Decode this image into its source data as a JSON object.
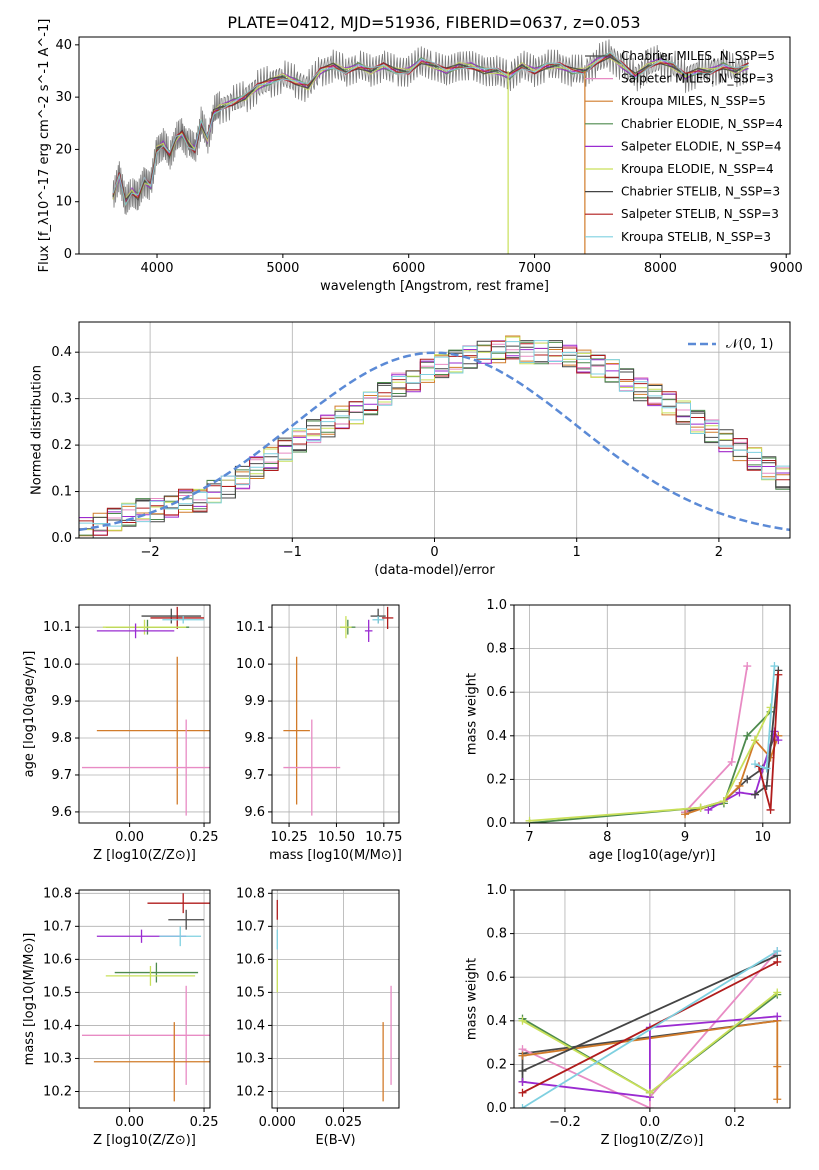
{
  "title": "PLATE=0412, MJD=51936, FIBERID=0637, z=0.053",
  "palette": [
    "#4a4a4a",
    "#e88bc4",
    "#d17b2a",
    "#4d8a4d",
    "#9a2bd1",
    "#c9e05a",
    "#444444",
    "#b01c1c",
    "#7fd0e0"
  ],
  "chart_data": [
    {
      "id": "spectrum",
      "type": "line",
      "xlabel": "wavelength [Angstrom, rest frame]",
      "ylabel": "Flux [f_λ10^-17 erg cm^-2 s^-1 A^-1]",
      "xlim": [
        3380,
        9030
      ],
      "ylim": [
        0,
        41.5
      ],
      "xticks": [
        4000,
        5000,
        6000,
        7000,
        8000,
        9000
      ],
      "yticks": [
        0,
        10,
        20,
        30,
        40
      ],
      "grid": false,
      "legend_position": "right",
      "data_curve": {
        "x": [
          3650,
          3700,
          3750,
          3800,
          3850,
          3900,
          3950,
          4000,
          4050,
          4100,
          4150,
          4200,
          4250,
          4300,
          4350,
          4400,
          4450,
          4500,
          4600,
          4700,
          4800,
          4900,
          5000,
          5100,
          5200,
          5300,
          5400,
          5500,
          5600,
          5700,
          5800,
          5900,
          6000,
          6100,
          6200,
          6300,
          6400,
          6500,
          6600,
          6700,
          6800,
          6900,
          7000,
          7100,
          7200,
          7300,
          7400,
          7500,
          7600,
          7700,
          7800,
          7900,
          8000,
          8100,
          8200,
          8300,
          8400,
          8500,
          8600,
          8700
        ],
        "y": [
          11,
          15,
          10,
          12,
          11,
          14,
          13,
          20,
          21,
          19,
          22,
          23,
          21,
          20,
          25,
          22,
          27,
          28,
          29,
          30,
          32,
          33,
          34,
          33,
          32,
          35,
          36,
          35,
          36,
          35,
          36,
          35,
          35,
          37,
          36,
          35,
          36,
          36,
          35,
          35,
          34,
          36,
          35,
          36,
          36,
          35,
          35,
          37,
          38,
          36,
          34,
          36,
          37,
          36,
          34,
          35,
          35,
          36,
          35,
          36
        ]
      },
      "series": [
        {
          "name": "Chabrier MILES, N_SSP=5"
        },
        {
          "name": "Salpeter MILES, N_SSP=3"
        },
        {
          "name": "Kroupa MILES, N_SSP=5"
        },
        {
          "name": "Chabrier ELODIE, N_SSP=4"
        },
        {
          "name": "Salpeter ELODIE, N_SSP=4"
        },
        {
          "name": "Kroupa ELODIE, N_SSP=4"
        },
        {
          "name": "Chabrier STELIB, N_SSP=3"
        },
        {
          "name": "Salpeter STELIB, N_SSP=3"
        },
        {
          "name": "Kroupa STELIB, N_SSP=3"
        }
      ]
    },
    {
      "id": "residuals",
      "type": "bar",
      "xlabel": "(data-model)/error",
      "ylabel": "Normed distribution",
      "xlim": [
        -2.5,
        2.5
      ],
      "ylim": [
        0,
        0.465
      ],
      "xticks": [
        -2,
        -1,
        0,
        1,
        2
      ],
      "yticks": [
        0.0,
        0.1,
        0.2,
        0.3,
        0.4
      ],
      "grid": true,
      "legend_position": "top-right",
      "reference_curve": {
        "name": "𝒩(0, 1)",
        "mean": 0,
        "sigma": 1
      },
      "histogram": {
        "bin_width": 0.1,
        "x_start": -2.5,
        "values": [
          0.02,
          0.03,
          0.04,
          0.05,
          0.06,
          0.06,
          0.07,
          0.08,
          0.08,
          0.1,
          0.11,
          0.13,
          0.15,
          0.17,
          0.19,
          0.21,
          0.23,
          0.24,
          0.26,
          0.27,
          0.29,
          0.31,
          0.33,
          0.34,
          0.36,
          0.37,
          0.38,
          0.39,
          0.4,
          0.4,
          0.41,
          0.4,
          0.4,
          0.4,
          0.39,
          0.38,
          0.37,
          0.36,
          0.34,
          0.32,
          0.31,
          0.29,
          0.27,
          0.25,
          0.23,
          0.21,
          0.19,
          0.17,
          0.15,
          0.13
        ]
      }
    },
    {
      "id": "age-vs-Z",
      "type": "scatter",
      "xlabel": "Z [log10(Z/Z⊙)]",
      "ylabel": "age  [log10(age/yr)]",
      "xlim": [
        -0.17,
        0.27
      ],
      "ylim": [
        9.57,
        10.16
      ],
      "xticks": [
        0.0,
        0.25
      ],
      "yticks": [
        9.6,
        9.7,
        9.8,
        9.9,
        10.0,
        10.1
      ],
      "grid": true,
      "points": [
        {
          "series": 0,
          "x": 0.14,
          "y": 10.13,
          "xerr": 0.1,
          "yerr": 0.02
        },
        {
          "series": 7,
          "x": 0.16,
          "y": 10.125,
          "xerr": 0.09,
          "yerr": 0.03
        },
        {
          "series": 8,
          "x": 0.18,
          "y": 10.12,
          "xerr": 0.07,
          "yerr": 0.01
        },
        {
          "series": 3,
          "x": 0.06,
          "y": 10.1,
          "xerr": 0.14,
          "yerr": 0.02
        },
        {
          "series": 5,
          "x": 0.05,
          "y": 10.1,
          "xerr": 0.14,
          "yerr": 0.02
        },
        {
          "series": 4,
          "x": 0.02,
          "y": 10.09,
          "xerr": 0.13,
          "yerr": 0.02
        },
        {
          "series": 2,
          "x": 0.16,
          "y": 9.82,
          "xerr": 0.27,
          "yerr": 0.2
        },
        {
          "series": 1,
          "x": 0.19,
          "y": 9.72,
          "xerr": 0.35,
          "yerr": 0.13
        }
      ]
    },
    {
      "id": "age-vs-mass",
      "type": "scatter",
      "xlabel": "mass [log10(M/M⊙)]",
      "ylabel": "",
      "xlim": [
        10.16,
        10.83
      ],
      "ylim": [
        9.57,
        10.16
      ],
      "xticks": [
        10.25,
        10.5,
        10.75
      ],
      "yticks": [
        9.6,
        9.7,
        9.8,
        9.9,
        10.0,
        10.1
      ],
      "grid": true,
      "points": [
        {
          "series": 0,
          "x": 10.72,
          "y": 10.13,
          "xerr": 0.04,
          "yerr": 0.02
        },
        {
          "series": 7,
          "x": 10.77,
          "y": 10.125,
          "xerr": 0.03,
          "yerr": 0.03
        },
        {
          "series": 8,
          "x": 10.72,
          "y": 10.12,
          "xerr": 0.03,
          "yerr": 0.01
        },
        {
          "series": 3,
          "x": 10.56,
          "y": 10.1,
          "xerr": 0.04,
          "yerr": 0.02
        },
        {
          "series": 5,
          "x": 10.55,
          "y": 10.1,
          "xerr": 0.03,
          "yerr": 0.03
        },
        {
          "series": 4,
          "x": 10.67,
          "y": 10.09,
          "xerr": 0.02,
          "yerr": 0.03
        },
        {
          "series": 2,
          "x": 10.29,
          "y": 9.82,
          "xerr": 0.07,
          "yerr": 0.2
        },
        {
          "series": 1,
          "x": 10.37,
          "y": 9.72,
          "xerr": 0.15,
          "yerr": 0.13
        }
      ]
    },
    {
      "id": "massweight-vs-age",
      "type": "line",
      "xlabel": "age  [log10(age/yr)]",
      "ylabel": "mass weight",
      "xlim": [
        6.8,
        10.35
      ],
      "ylim": [
        0,
        1.0
      ],
      "xticks": [
        7,
        8,
        9,
        10
      ],
      "yticks": [
        0.0,
        0.2,
        0.4,
        0.6,
        0.8,
        1.0
      ],
      "grid": true,
      "series": [
        {
          "x": [
            9.0,
            9.5,
            9.8,
            10.0,
            10.15
          ],
          "y": [
            0.05,
            0.1,
            0.2,
            0.25,
            0.4
          ]
        },
        {
          "x": [
            9.0,
            9.6,
            9.8
          ],
          "y": [
            0.05,
            0.28,
            0.72
          ]
        },
        {
          "x": [
            9.0,
            9.5,
            9.7,
            9.9,
            10.1,
            10.2
          ],
          "y": [
            0.04,
            0.1,
            0.17,
            0.38,
            0.3,
            0.4
          ]
        },
        {
          "x": [
            7.0,
            9.2,
            9.5,
            9.8,
            10.1
          ],
          "y": [
            0.0,
            0.07,
            0.09,
            0.4,
            0.51
          ]
        },
        {
          "x": [
            9.3,
            9.7,
            9.9,
            10.15,
            10.2
          ],
          "y": [
            0.06,
            0.14,
            0.13,
            0.42,
            0.38
          ]
        },
        {
          "x": [
            7.0,
            9.2,
            9.5,
            9.9,
            10.1
          ],
          "y": [
            0.01,
            0.07,
            0.1,
            0.38,
            0.53
          ]
        },
        {
          "x": [
            9.9,
            10.05,
            10.2
          ],
          "y": [
            0.13,
            0.17,
            0.7
          ]
        },
        {
          "x": [
            9.95,
            10.1,
            10.2
          ],
          "y": [
            0.26,
            0.06,
            0.68
          ]
        },
        {
          "x": [
            9.9,
            10.05,
            10.15
          ],
          "y": [
            0.27,
            0.25,
            0.72
          ]
        }
      ]
    },
    {
      "id": "mass-vs-Z",
      "type": "scatter",
      "xlabel": "Z [log10(Z/Z⊙)]",
      "ylabel": "mass [log10(M/M⊙)]",
      "xlim": [
        -0.17,
        0.27
      ],
      "ylim": [
        10.15,
        10.81
      ],
      "xticks": [
        0.0,
        0.25
      ],
      "yticks": [
        10.2,
        10.3,
        10.4,
        10.5,
        10.6,
        10.7,
        10.8
      ],
      "grid": true,
      "points": [
        {
          "series": 7,
          "x": 0.18,
          "y": 10.77,
          "xerr": 0.12,
          "yerr": 0.03
        },
        {
          "series": 0,
          "x": 0.19,
          "y": 10.72,
          "xerr": 0.06,
          "yerr": 0.03
        },
        {
          "series": 4,
          "x": 0.04,
          "y": 10.67,
          "xerr": 0.15,
          "yerr": 0.02
        },
        {
          "series": 8,
          "x": 0.17,
          "y": 10.67,
          "xerr": 0.07,
          "yerr": 0.03
        },
        {
          "series": 3,
          "x": 0.09,
          "y": 10.56,
          "xerr": 0.14,
          "yerr": 0.03
        },
        {
          "series": 5,
          "x": 0.07,
          "y": 10.55,
          "xerr": 0.15,
          "yerr": 0.03
        },
        {
          "series": 1,
          "x": 0.19,
          "y": 10.37,
          "xerr": 0.35,
          "yerr": 0.15
        },
        {
          "series": 2,
          "x": 0.15,
          "y": 10.29,
          "xerr": 0.27,
          "yerr": 0.12
        }
      ]
    },
    {
      "id": "mass-vs-ebv",
      "type": "scatter",
      "xlabel": "E(B-V)",
      "ylabel": "",
      "xlim": [
        -0.002,
        0.046
      ],
      "ylim": [
        10.15,
        10.81
      ],
      "xticks": [
        0.0,
        0.025
      ],
      "xtick_labels": [
        "0.000",
        "0.025"
      ],
      "yticks": [
        10.2,
        10.3,
        10.4,
        10.5,
        10.6,
        10.7,
        10.8
      ],
      "grid": true,
      "points": [
        {
          "series": 7,
          "x": 0.0,
          "y": 10.75,
          "xerr": 0,
          "yerr": 0.03
        },
        {
          "series": 8,
          "x": 0.0,
          "y": 10.66,
          "xerr": 0,
          "yerr": 0.03
        },
        {
          "series": 5,
          "x": 0.0,
          "y": 10.55,
          "xerr": 0,
          "yerr": 0.05
        },
        {
          "series": 2,
          "x": 0.04,
          "y": 10.29,
          "xerr": 0,
          "yerr": 0.12
        },
        {
          "series": 1,
          "x": 0.043,
          "y": 10.37,
          "xerr": 0,
          "yerr": 0.15
        }
      ]
    },
    {
      "id": "massweight-vs-Z",
      "type": "line",
      "xlabel": "Z [log10(Z/Z⊙)]",
      "ylabel": "mass weight",
      "xlim": [
        -0.32,
        0.33
      ],
      "ylim": [
        0,
        1.0
      ],
      "xticks": [
        -0.2,
        0.0,
        0.2
      ],
      "yticks": [
        0.0,
        0.2,
        0.4,
        0.6,
        0.8,
        1.0
      ],
      "grid": true,
      "series": [
        {
          "x": [
            -0.3,
            -0.3,
            0.3
          ],
          "y": [
            0.12,
            0.25,
            0.4
          ]
        },
        {
          "x": [
            -0.3,
            0.0,
            0.0,
            0.3
          ],
          "y": [
            0.27,
            0.0,
            0.05,
            0.72
          ]
        },
        {
          "x": [
            -0.3,
            0.3,
            0.3,
            0.3
          ],
          "y": [
            0.24,
            0.4,
            0.19,
            0.04
          ]
        },
        {
          "x": [
            -0.3,
            0.0,
            0.3
          ],
          "y": [
            0.41,
            0.07,
            0.52
          ]
        },
        {
          "x": [
            -0.3,
            0.0,
            0.0,
            0.3
          ],
          "y": [
            0.12,
            0.05,
            0.37,
            0.42
          ]
        },
        {
          "x": [
            -0.3,
            0.0,
            0.3
          ],
          "y": [
            0.4,
            0.07,
            0.53
          ]
        },
        {
          "x": [
            -0.3,
            0.3
          ],
          "y": [
            0.17,
            0.7
          ]
        },
        {
          "x": [
            -0.3,
            0.3
          ],
          "y": [
            0.07,
            0.67
          ]
        },
        {
          "x": [
            -0.3,
            0.3
          ],
          "y": [
            0.0,
            0.72
          ]
        }
      ]
    }
  ]
}
